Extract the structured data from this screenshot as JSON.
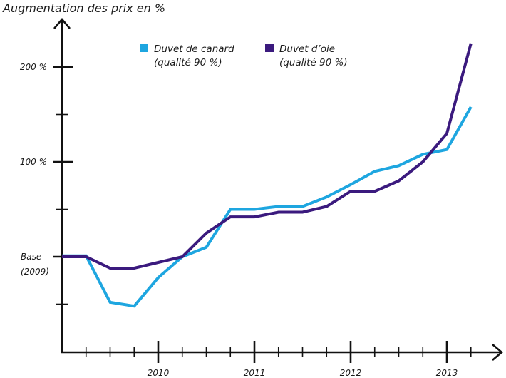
{
  "chart_data": {
    "type": "line",
    "ylabel": "Augmentation des prix en %",
    "x_ticks": [
      "2010",
      "2011",
      "2012",
      "2013"
    ],
    "y_ticks": [
      {
        "value": 200,
        "label": "200 %"
      },
      {
        "value": 100,
        "label": "100 %"
      },
      {
        "value": 0,
        "label_line1": "Base",
        "label_line2": "(2009)"
      }
    ],
    "ylim": [
      -100,
      240
    ],
    "xlim": [
      2009,
      2013.55
    ],
    "grid": false,
    "legend": "top-center",
    "series": [
      {
        "name_line1": "Duvet de canard",
        "name_line2": "(qualité 90 %)",
        "color": "#1ea6e0",
        "points": [
          [
            2009.0,
            1
          ],
          [
            2009.25,
            1
          ],
          [
            2009.5,
            -48
          ],
          [
            2009.75,
            -52
          ],
          [
            2010.0,
            -22
          ],
          [
            2010.25,
            0
          ],
          [
            2010.5,
            10
          ],
          [
            2010.75,
            50
          ],
          [
            2011.0,
            50
          ],
          [
            2011.25,
            53
          ],
          [
            2011.5,
            53
          ],
          [
            2011.75,
            63
          ],
          [
            2012.0,
            76
          ],
          [
            2012.25,
            90
          ],
          [
            2012.5,
            96
          ],
          [
            2012.75,
            108
          ],
          [
            2013.0,
            113
          ],
          [
            2013.25,
            158
          ]
        ]
      },
      {
        "name_line1": "Duvet d’oie",
        "name_line2": "(qualité 90 %)",
        "color": "#3b1a7e",
        "points": [
          [
            2009.0,
            0
          ],
          [
            2009.25,
            0
          ],
          [
            2009.5,
            -12
          ],
          [
            2009.75,
            -12
          ],
          [
            2010.0,
            -6
          ],
          [
            2010.25,
            0
          ],
          [
            2010.5,
            25
          ],
          [
            2010.75,
            42
          ],
          [
            2011.0,
            42
          ],
          [
            2011.25,
            47
          ],
          [
            2011.5,
            47
          ],
          [
            2011.75,
            53
          ],
          [
            2012.0,
            69
          ],
          [
            2012.25,
            69
          ],
          [
            2012.5,
            80
          ],
          [
            2012.75,
            100
          ],
          [
            2013.0,
            130
          ],
          [
            2013.25,
            225
          ]
        ]
      }
    ]
  }
}
